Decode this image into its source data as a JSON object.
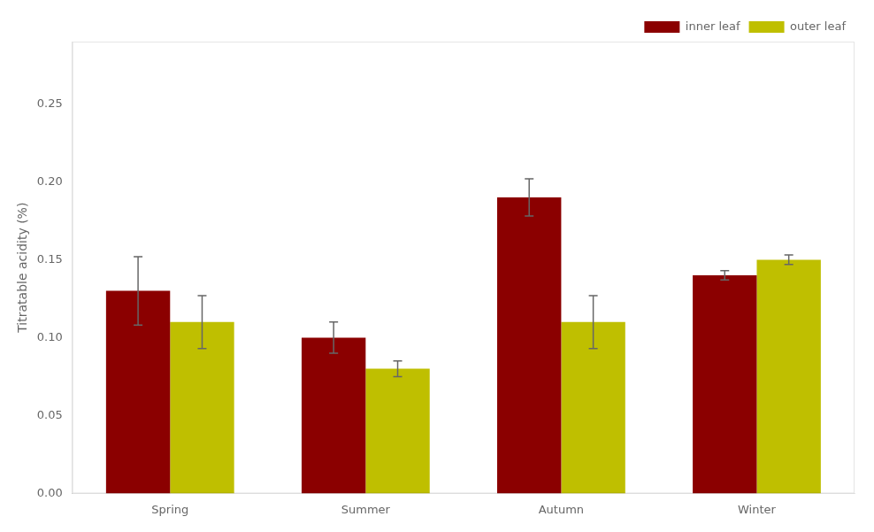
{
  "chart_data": {
    "type": "bar",
    "categories": [
      "Spring",
      "Summer",
      "Autumn",
      "Winter"
    ],
    "series": [
      {
        "name": "inner leaf",
        "color": "#8B0000",
        "values": [
          0.13,
          0.1,
          0.19,
          0.14
        ],
        "errors": [
          0.022,
          0.01,
          0.012,
          0.003
        ]
      },
      {
        "name": "outer leaf",
        "color": "#BFBF00",
        "values": [
          0.11,
          0.08,
          0.11,
          0.15
        ],
        "errors": [
          0.017,
          0.005,
          0.017,
          0.003
        ]
      }
    ],
    "ylabel": "Titratable acidity (%)",
    "ylim": [
      0,
      0.29
    ],
    "yticks": [
      {
        "value": 0.0,
        "label": "0.00"
      },
      0.05,
      {
        "value": 0.1,
        "label": "0.10"
      },
      0.15,
      {
        "value": 0.2,
        "label": "0.20"
      },
      0.25
    ],
    "grid": false,
    "legend": "upper right"
  }
}
